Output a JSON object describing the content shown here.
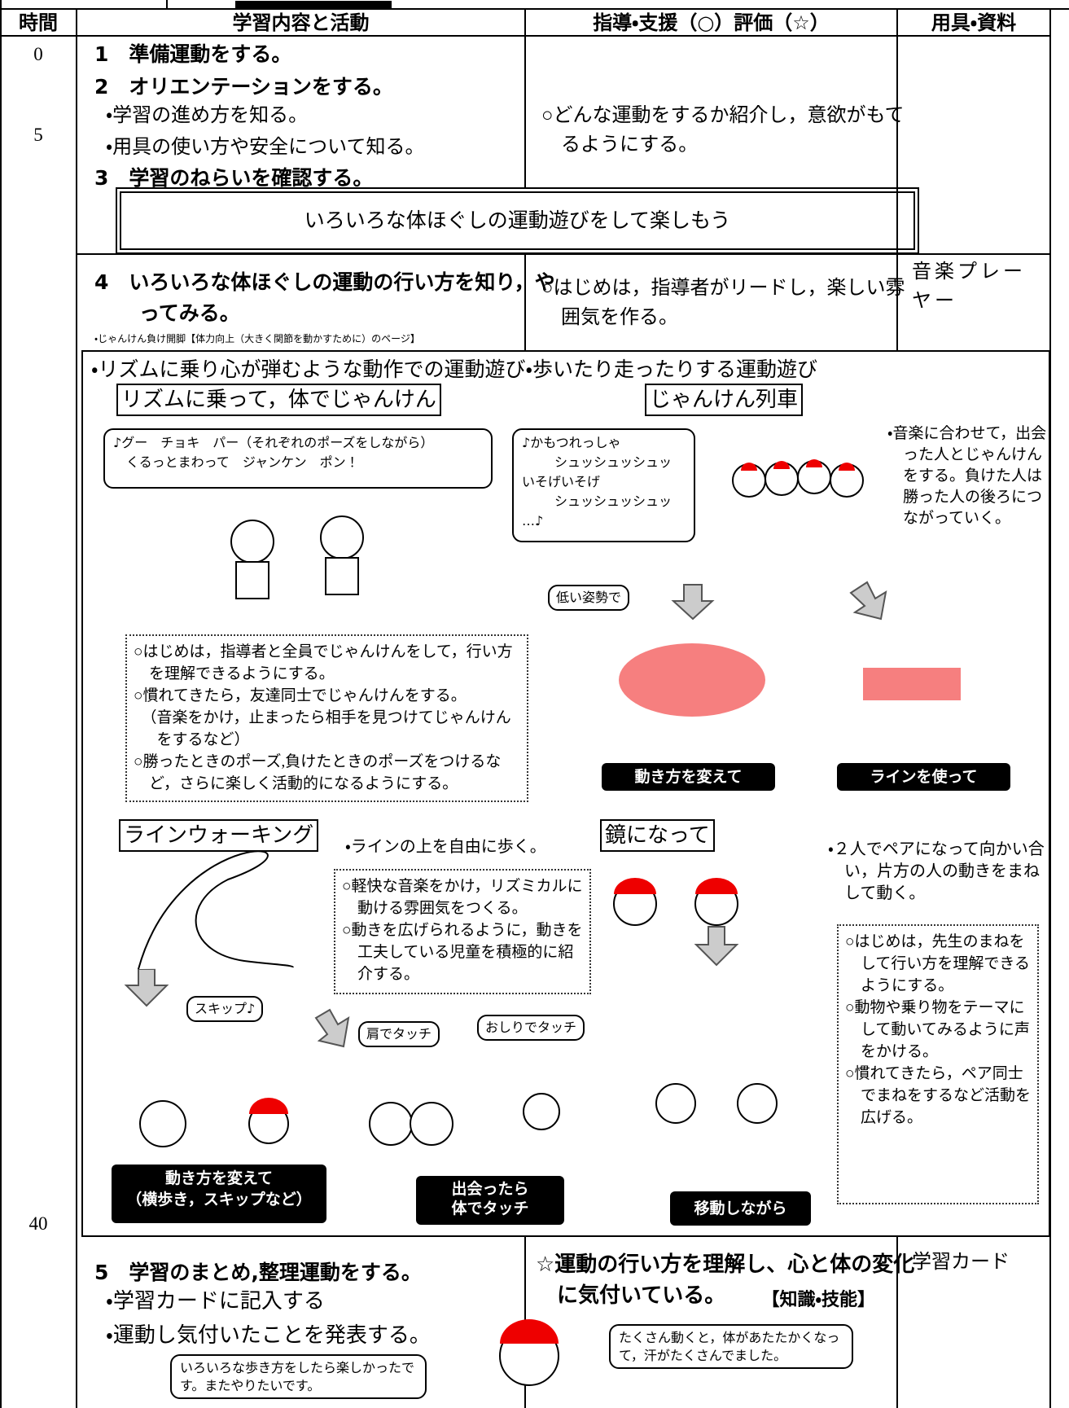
{
  "header": {
    "time": "時間",
    "content": "学習内容と活動",
    "guidance": "指導・支援（○）評価（☆）",
    "tools": "用具・資料"
  },
  "times": [
    "0",
    "5",
    "40"
  ],
  "section1": {
    "step1": "1　準備運動をする。",
    "step2": "2　オリエンテーションをする。",
    "subs": [
      "・学習の進め方を知る。",
      "・用具の使い方や安全について知る。"
    ],
    "step3": "3　学習のねらいを確認する。",
    "guidance": "○どんな運動をするか紹介し，意欲がもてるようにする。"
  },
  "goal": "いろいろな体ほぐしの運動遊びをして楽しもう",
  "section4": {
    "step": "4　いろいろな体ほぐしの運動の行い方を知り，やってみる。",
    "reference": "・じゃんけん負け開脚【体力向上（大きく関節を動かすために）のページ】",
    "guidance": "○はじめは，指導者がリードし，楽しい雰囲気を作る。",
    "tools": "音楽プレーヤー"
  },
  "activities": {
    "intro": "・リズムに乗り心が弾むような動作での運動遊び・歩いたり走ったりする運動遊び",
    "janken": {
      "title": "リズムに乗って，体でじゃんけん",
      "bubble": [
        "♪グー　チョキ　パー（それぞれのポーズをしながら）",
        "くるっとまわって　ジャンケン　ポン！"
      ],
      "notes": [
        "○はじめは，指導者と全員でじゃんけんをして，行い方を理解できるようにする。",
        "○慣れてきたら，友達同士でじゃんけんをする。",
        "（音楽をかけ，止まったら相手を見つけてじゃんけんをするなど）",
        "○勝ったときのポーズ,負けたときのポーズをつけるなど，さらに楽しく活動的になるようにする。"
      ]
    },
    "train": {
      "title": "じゃんけん列車",
      "bubble": [
        "♪かもつれっしゃ",
        "シュッシュッシュッ",
        "いそげいそげ",
        "シュッシュッシュッ",
        "…♪"
      ],
      "note": "・音楽に合わせて，出会った人とじゃんけんをする。負けた人は勝った人の後ろにつながっていく。",
      "low": "低い姿勢で",
      "labels": [
        "動き方を変えて",
        "ラインを使って"
      ]
    },
    "line": {
      "title": "ラインウォーキング",
      "note": "・ラインの上を自由に歩く。",
      "notes": [
        "○軽快な音楽をかけ，リズミカルに動ける雰囲気をつくる。",
        "○動きを広げられるように，動きを工夫している児童を積極的に紹介する。"
      ],
      "skip": "スキップ♪",
      "shoulder": "肩でタッチ",
      "hip": "おしりでタッチ",
      "labels": [
        "動き方を変えて",
        "（横歩き，スキップなど）",
        "出会ったら",
        "体でタッチ"
      ]
    },
    "mirror": {
      "title": "鏡になって",
      "note": "・２人でペアになって向かい合い，片方の人の動きをまねして動く。",
      "notes": [
        "○はじめは，先生のまねをして行い方を理解できるようにする。",
        "○動物や乗り物をテーマにして動いてみるように声をかける。",
        "○慣れてきたら，ペア同士でまねをするなど活動を広げる。"
      ],
      "label": "移動しながら"
    }
  },
  "section5": {
    "step": "5　学習のまとめ,整理運動をする。",
    "subs": [
      "・学習カードに記入する",
      "・運動し気付いたことを発表する。"
    ],
    "guidance": "☆運動の行い方を理解し、心と体の変化に気付いている。",
    "criterion": "【知識・技能】",
    "tools": "学習カード",
    "bubble_left": "いろいろな歩き方をしたら楽しかったです。またやりたいです。",
    "bubble_right": "たくさん動くと，体があたたかくなって，汗がたくさんでました。"
  }
}
